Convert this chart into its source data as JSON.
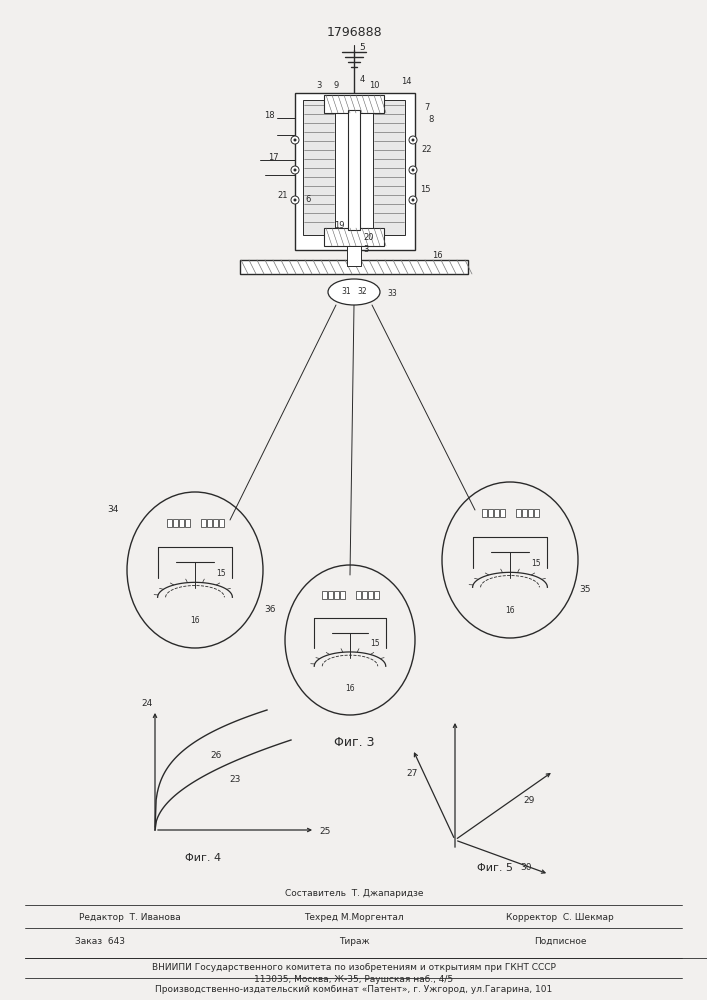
{
  "patent_number": "1796888",
  "bg_color": "#f2f0ee",
  "line_color": "#2a2a2a",
  "fig3_label": "Φиг. 3",
  "fig4_label": "Φиг. 4",
  "fig5_label": "Φиг. 5",
  "footer_editor": "Редактор  Т. Иванова",
  "footer_compiler": "Составитель  Т. Джапаридзе",
  "footer_techred": "Техред М.Моргентал",
  "footer_corrector": "Корректор  С. Шекмар",
  "footer_order": "Заказ  643",
  "footer_tirazh": "Тираж",
  "footer_podpisnoe": "Подписное",
  "footer_vniipи": "ВНИИПИ Государственного комитета по изобретениям и открытиям при ГКНТ СССР",
  "footer_address": "113035, Москва, Ж-35, Раушская наб., 4/5",
  "footer_plant": "Производственно-издательский комбинат «Патент», г. Ужгород, ул.Гагарина, 101"
}
